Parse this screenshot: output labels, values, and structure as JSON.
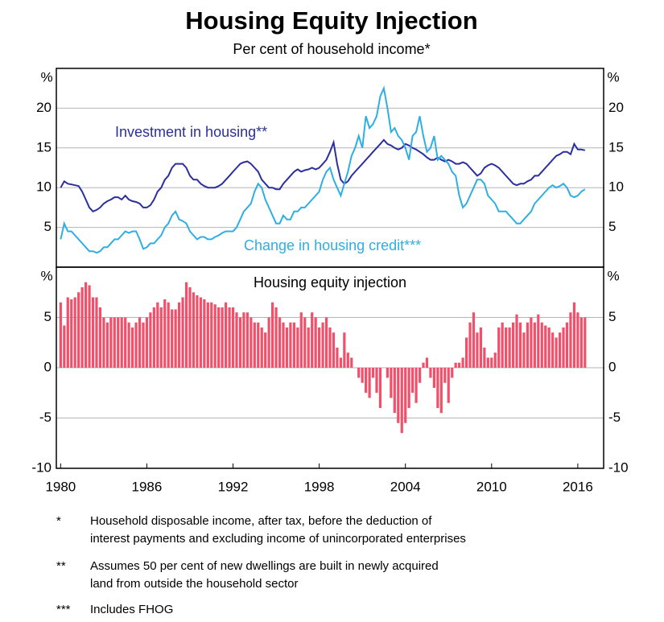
{
  "title": "Housing Equity Injection",
  "subtitle": "Per cent of household income*",
  "chart_data": [
    {
      "type": "line",
      "y_unit": "%",
      "xlim": [
        1979.7,
        2017.8
      ],
      "ylim": [
        0,
        25
      ],
      "yticks": [
        5,
        10,
        15,
        20
      ],
      "grid": true,
      "x": [
        1980,
        1980.25,
        1980.5,
        1980.75,
        1981,
        1981.25,
        1981.5,
        1981.75,
        1982,
        1982.25,
        1982.5,
        1982.75,
        1983,
        1983.25,
        1983.5,
        1983.75,
        1984,
        1984.25,
        1984.5,
        1984.75,
        1985,
        1985.25,
        1985.5,
        1985.75,
        1986,
        1986.25,
        1986.5,
        1986.75,
        1987,
        1987.25,
        1987.5,
        1987.75,
        1988,
        1988.25,
        1988.5,
        1988.75,
        1989,
        1989.25,
        1989.5,
        1989.75,
        1990,
        1990.25,
        1990.5,
        1990.75,
        1991,
        1991.25,
        1991.5,
        1991.75,
        1992,
        1992.25,
        1992.5,
        1992.75,
        1993,
        1993.25,
        1993.5,
        1993.75,
        1994,
        1994.25,
        1994.5,
        1994.75,
        1995,
        1995.25,
        1995.5,
        1995.75,
        1996,
        1996.25,
        1996.5,
        1996.75,
        1997,
        1997.25,
        1997.5,
        1997.75,
        1998,
        1998.25,
        1998.5,
        1998.75,
        1999,
        1999.25,
        1999.5,
        1999.75,
        2000,
        2000.25,
        2000.5,
        2000.75,
        2001,
        2001.25,
        2001.5,
        2001.75,
        2002,
        2002.25,
        2002.5,
        2002.75,
        2003,
        2003.25,
        2003.5,
        2003.75,
        2004,
        2004.25,
        2004.5,
        2004.75,
        2005,
        2005.25,
        2005.5,
        2005.75,
        2006,
        2006.25,
        2006.5,
        2006.75,
        2007,
        2007.25,
        2007.5,
        2007.75,
        2008,
        2008.25,
        2008.5,
        2008.75,
        2009,
        2009.25,
        2009.5,
        2009.75,
        2010,
        2010.25,
        2010.5,
        2010.75,
        2011,
        2011.25,
        2011.5,
        2011.75,
        2012,
        2012.25,
        2012.5,
        2012.75,
        2013,
        2013.25,
        2013.5,
        2013.75,
        2014,
        2014.25,
        2014.5,
        2014.75,
        2015,
        2015.25,
        2015.5,
        2015.75,
        2016,
        2016.25,
        2016.5
      ],
      "series": [
        {
          "name": "Investment in housing**",
          "color": "#2b2f9e",
          "values": [
            10,
            10.8,
            10.5,
            10.4,
            10.3,
            10.2,
            9.5,
            8.5,
            7.5,
            7,
            7.2,
            7.5,
            8,
            8.3,
            8.5,
            8.8,
            8.8,
            8.5,
            9,
            8.5,
            8.3,
            8.2,
            8,
            7.5,
            7.5,
            7.8,
            8.5,
            9.5,
            10,
            11,
            11.5,
            12.5,
            13,
            13,
            13,
            12.5,
            11.5,
            11,
            11,
            10.5,
            10.2,
            10,
            10,
            10,
            10.2,
            10.5,
            11,
            11.5,
            12,
            12.5,
            13,
            13.2,
            13.3,
            13,
            12.5,
            12,
            11,
            10.5,
            10,
            10,
            9.8,
            9.8,
            10.5,
            11,
            11.5,
            12,
            12.3,
            12,
            12.2,
            12.3,
            12.5,
            12.3,
            12.5,
            13,
            13.5,
            14.5,
            15.7,
            13,
            11,
            10.5,
            10.8,
            11.5,
            12,
            12.5,
            13,
            13.5,
            14,
            14.5,
            15,
            15.5,
            16,
            15.5,
            15.3,
            15,
            14.8,
            15,
            15.5,
            15.3,
            15,
            14.8,
            14.5,
            14.2,
            13.8,
            13.5,
            13.5,
            13.8,
            13.5,
            13.3,
            13.5,
            13.3,
            13,
            13,
            13.2,
            13,
            12.5,
            12,
            11.5,
            11.8,
            12.5,
            12.8,
            13,
            12.8,
            12.5,
            12,
            11.5,
            11,
            10.5,
            10.3,
            10.5,
            10.5,
            10.8,
            11,
            11.5,
            11.5,
            12,
            12.5,
            13,
            13.5,
            14,
            14.2,
            14.5,
            14.5,
            14.2,
            15.5,
            14.8,
            14.8,
            14.7
          ]
        },
        {
          "name": "Change in housing credit***",
          "color": "#2eaee3",
          "values": [
            3.5,
            5.5,
            4.5,
            4.5,
            4,
            3.5,
            3,
            2.5,
            2,
            2,
            1.8,
            2,
            2.5,
            2.5,
            3,
            3.5,
            3.5,
            4,
            4.5,
            4.3,
            4.5,
            4.5,
            3.5,
            2.3,
            2.5,
            3,
            3,
            3.5,
            4,
            5,
            5.5,
            6.5,
            7,
            6,
            5.8,
            5.5,
            4.5,
            4,
            3.5,
            3.8,
            3.8,
            3.5,
            3.5,
            3.8,
            4,
            4.3,
            4.5,
            4.5,
            4.5,
            5,
            6,
            7,
            7.5,
            8,
            9.5,
            10.5,
            10,
            8.5,
            7.5,
            6.5,
            5.5,
            5.5,
            6.5,
            6,
            6,
            7,
            7,
            7.5,
            7.5,
            8,
            8.5,
            9,
            9.5,
            11,
            12,
            12.5,
            11,
            10,
            9,
            10.5,
            12,
            14,
            15,
            16.5,
            15,
            19,
            17.5,
            18,
            19,
            21.5,
            22.5,
            20,
            17,
            17.5,
            16.5,
            16,
            15,
            13.5,
            16.5,
            17,
            19,
            16.5,
            14.5,
            15,
            16.5,
            13.5,
            14,
            13.5,
            13,
            12,
            11.5,
            9,
            7.5,
            8,
            9,
            10,
            11,
            11,
            10.5,
            9,
            8.5,
            8,
            7,
            7,
            7,
            6.5,
            6,
            5.5,
            5.5,
            6,
            6.5,
            7,
            8,
            8.5,
            9,
            9.5,
            10,
            10.3,
            10,
            10.2,
            10.5,
            10,
            9,
            8.8,
            9,
            9.5,
            9.8
          ]
        }
      ]
    },
    {
      "type": "bar",
      "title": "Housing equity injection",
      "y_unit": "%",
      "color": "#f2506a",
      "xlim": [
        1979.7,
        2017.8
      ],
      "ylim": [
        -10,
        10
      ],
      "yticks": [
        -10,
        -5,
        0,
        5
      ],
      "grid": true,
      "xticks": [
        1980,
        1986,
        1992,
        1998,
        2004,
        2010,
        2016
      ],
      "values": [
        6.5,
        4.2,
        7,
        6.8,
        7,
        7.5,
        8,
        8.5,
        8.2,
        7,
        7,
        6,
        5,
        4.5,
        5,
        5,
        5,
        5,
        5,
        4.5,
        4,
        4.5,
        5,
        4.5,
        5,
        5.5,
        6,
        6.5,
        6,
        6.8,
        6.5,
        5.8,
        5.8,
        6.5,
        7,
        8.5,
        8,
        7.5,
        7.2,
        7,
        6.8,
        6.5,
        6.5,
        6.3,
        6,
        6,
        6.5,
        6,
        6,
        5.5,
        5,
        5.5,
        5.5,
        5,
        4.5,
        4.5,
        4,
        3.5,
        5,
        6.5,
        6,
        5,
        4.5,
        4,
        4.5,
        4.5,
        4,
        5.5,
        5,
        4,
        5.5,
        5,
        4,
        4.5,
        5,
        4,
        3.5,
        2,
        1,
        3.5,
        1.5,
        1,
        0,
        -1,
        -1.5,
        -2.5,
        -3,
        -1,
        -2.5,
        -4,
        0,
        -1,
        -3,
        -4.5,
        -5.5,
        -6.5,
        -5.5,
        -4,
        -2.5,
        -3.5,
        -1.5,
        0.5,
        1,
        -1,
        -2,
        -4,
        -4.5,
        -1.5,
        -3.5,
        -1,
        0.5,
        0.5,
        1,
        3,
        4.5,
        5.5,
        3.5,
        4,
        2,
        1,
        1,
        1.5,
        4,
        4.5,
        4,
        4,
        4.5,
        5.3,
        4.5,
        3.5,
        4.5,
        5,
        4.5,
        5.3,
        4.5,
        4.2,
        4,
        3.5,
        3,
        3.5,
        4,
        4.5,
        5.5,
        6.5,
        5.5,
        5,
        5
      ]
    }
  ],
  "footnotes": [
    {
      "marker": "*",
      "lines": [
        "Household disposable income, after tax, before the deduction of",
        "interest payments and excluding income of unincorporated enterprises"
      ]
    },
    {
      "marker": "**",
      "lines": [
        "Assumes 50 per cent of new dwellings are built in newly acquired",
        "land from outside the household sector"
      ]
    },
    {
      "marker": "***",
      "lines": [
        "Includes FHOG"
      ]
    }
  ]
}
